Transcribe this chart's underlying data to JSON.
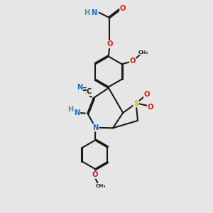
{
  "bg_color": "#e6e6e6",
  "colors": {
    "C": "#1a1a1a",
    "N": "#1a6bcc",
    "O": "#dd1a14",
    "S": "#c8b800",
    "H": "#4a9898"
  },
  "lw": 1.5,
  "fs": 7.2,
  "fs_small": 5.2
}
